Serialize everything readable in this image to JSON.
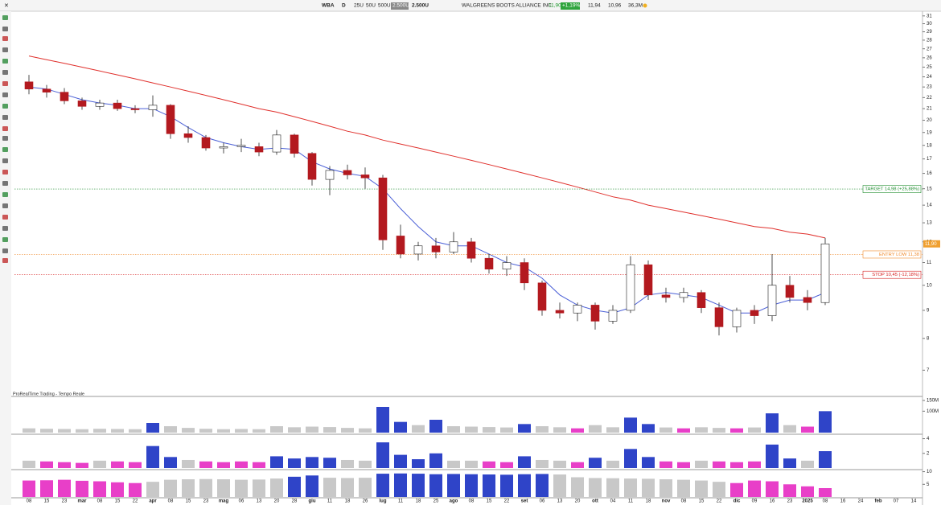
{
  "header": {
    "ticker": "WBA",
    "timeframe": "D",
    "buttons": [
      "25U",
      "50U",
      "500U",
      "2.500U"
    ],
    "size": "2.500U",
    "price": "11,90",
    "change": "+1,19%",
    "high": "11,94",
    "low": "10,96",
    "volume": "36,3M"
  },
  "chart_data": {
    "type": "candlestick",
    "title": "WALGREENS BOOTS ALLIANCE INC.",
    "source": "ProRealTime Trading - Tempo Reale",
    "categories": [
      "08",
      "15",
      "23",
      "mar",
      "08",
      "15",
      "22",
      "apr",
      "08",
      "15",
      "23",
      "mag",
      "06",
      "13",
      "20",
      "28",
      "giu",
      "11",
      "18",
      "26",
      "lug",
      "11",
      "18",
      "25",
      "ago",
      "08",
      "15",
      "22",
      "set",
      "06",
      "13",
      "20",
      "ott",
      "04",
      "11",
      "18",
      "nov",
      "08",
      "15",
      "22",
      "dic",
      "09",
      "16",
      "23",
      "2025",
      "08",
      "16",
      "24",
      "feb",
      "07",
      "14"
    ],
    "open": [
      23.5,
      22.8,
      22.5,
      21.7,
      21.2,
      21.5,
      21.0,
      20.9,
      21.3,
      18.9,
      18.6,
      17.8,
      17.9,
      17.9,
      17.5,
      18.8,
      17.4,
      15.6,
      16.2,
      15.9,
      15.7,
      12.3,
      11.4,
      11.8,
      11.5,
      12.0,
      11.2,
      10.7,
      11.0,
      10.1,
      9.0,
      8.9,
      9.2,
      8.6,
      9.0,
      10.9,
      9.6,
      9.5,
      9.7,
      9.1,
      8.4,
      9.0,
      8.8,
      10.0,
      9.5,
      9.3,
      null,
      null,
      null,
      null,
      null
    ],
    "high": [
      24.2,
      23.2,
      22.9,
      22.0,
      21.8,
      21.8,
      21.3,
      22.2,
      21.4,
      19.5,
      18.8,
      18.2,
      18.5,
      18.2,
      19.2,
      18.9,
      17.5,
      16.5,
      16.6,
      16.4,
      15.9,
      12.9,
      12.0,
      12.2,
      12.5,
      12.2,
      11.4,
      11.3,
      11.2,
      10.2,
      9.3,
      9.3,
      9.3,
      9.2,
      11.3,
      11.1,
      9.9,
      9.9,
      9.8,
      9.3,
      9.1,
      9.2,
      11.4,
      10.4,
      9.8,
      12.2,
      null,
      null,
      null,
      null,
      null
    ],
    "low": [
      22.3,
      22.0,
      21.4,
      20.9,
      20.9,
      20.8,
      20.6,
      20.3,
      18.5,
      18.2,
      17.6,
      17.4,
      17.5,
      17.2,
      17.3,
      17.1,
      15.2,
      14.6,
      15.6,
      15.0,
      11.6,
      11.2,
      11.1,
      11.2,
      11.4,
      11.0,
      10.5,
      10.4,
      9.8,
      8.8,
      8.7,
      8.6,
      8.3,
      8.5,
      8.9,
      9.4,
      9.3,
      9.3,
      8.9,
      8.1,
      8.2,
      8.5,
      8.6,
      9.3,
      9.0,
      9.2,
      null,
      null,
      null,
      null,
      null
    ],
    "close": [
      22.8,
      22.5,
      21.7,
      21.2,
      21.5,
      21.0,
      20.9,
      21.3,
      18.9,
      18.6,
      17.8,
      17.9,
      18.0,
      17.5,
      18.8,
      17.4,
      15.6,
      16.2,
      15.9,
      15.7,
      12.1,
      11.4,
      11.8,
      11.5,
      12.0,
      11.2,
      10.7,
      11.0,
      10.1,
      9.0,
      8.9,
      9.2,
      8.6,
      9.0,
      10.9,
      9.6,
      9.5,
      9.7,
      9.1,
      8.4,
      9.0,
      8.8,
      10.0,
      9.5,
      9.3,
      11.9,
      null,
      null,
      null,
      null,
      null
    ],
    "up_color": "#ffffff",
    "down_color": "#b3191f",
    "log_scale": true,
    "ylim": [
      6.55,
      31.4
    ],
    "yticks": [
      7,
      8,
      9,
      10,
      11,
      12,
      13,
      14,
      15,
      16,
      17,
      18,
      19,
      20,
      21,
      22,
      23,
      24,
      25,
      26,
      27,
      28,
      29,
      30,
      31
    ],
    "overlays": [
      {
        "color": "#e0302c",
        "values": [
          26.2,
          25.8,
          25.4,
          25.0,
          24.6,
          24.2,
          23.8,
          23.4,
          23.0,
          22.6,
          22.2,
          21.8,
          21.4,
          21.0,
          20.7,
          20.3,
          19.9,
          19.5,
          19.1,
          18.8,
          18.4,
          18.1,
          17.8,
          17.5,
          17.2,
          16.9,
          16.6,
          16.3,
          16.0,
          15.7,
          15.4,
          15.1,
          14.8,
          14.5,
          14.3,
          14.0,
          13.8,
          13.6,
          13.4,
          13.2,
          13.0,
          12.8,
          12.7,
          12.5,
          12.4,
          12.2,
          null,
          null,
          null,
          null,
          null
        ]
      },
      {
        "color": "#4a5fd6",
        "values": [
          23.0,
          22.8,
          22.3,
          21.8,
          21.5,
          21.3,
          21.0,
          21.0,
          20.3,
          19.4,
          18.6,
          18.2,
          17.9,
          17.7,
          17.8,
          17.7,
          16.8,
          16.3,
          16.0,
          15.8,
          15.0,
          13.8,
          12.8,
          12.0,
          11.8,
          11.8,
          11.4,
          11.0,
          10.8,
          10.3,
          9.6,
          9.2,
          9.0,
          8.9,
          9.1,
          9.6,
          9.7,
          9.6,
          9.5,
          9.2,
          8.9,
          8.9,
          9.2,
          9.4,
          9.4,
          9.7,
          null,
          null,
          null,
          null,
          null
        ]
      }
    ],
    "levels": [
      {
        "value": 14.98,
        "label": "TARGET 14,98 (+25,88%)",
        "color": "#1e8c2e"
      },
      {
        "value": 11.38,
        "label": "ENTRY LOW 11,38",
        "color": "#f08a2c"
      },
      {
        "value": 10.45,
        "label": "STOP 10,45 (-12,18%)",
        "color": "#d62020"
      }
    ],
    "last_price": {
      "value": 11.9,
      "label": "11,90",
      "color": "#f0a030"
    },
    "panels": [
      {
        "ylim": [
          0,
          165
        ],
        "yticks": [
          {
            "value": 100,
            "label": "100M"
          },
          {
            "value": 150,
            "label": "150M"
          }
        ],
        "values": [
          20,
          18,
          17,
          16,
          18,
          17,
          16,
          45,
          30,
          22,
          18,
          16,
          17,
          16,
          30,
          25,
          28,
          26,
          22,
          20,
          120,
          50,
          35,
          60,
          30,
          28,
          26,
          24,
          40,
          30,
          25,
          20,
          35,
          25,
          70,
          40,
          24,
          20,
          25,
          22,
          20,
          24,
          90,
          35,
          28,
          100,
          null,
          null,
          null,
          null,
          null
        ],
        "colors": [
          "#c8c8c8",
          "#c8c8c8",
          "#c8c8c8",
          "#c8c8c8",
          "#c8c8c8",
          "#c8c8c8",
          "#c8c8c8",
          "#2f44c8",
          "#c8c8c8",
          "#c8c8c8",
          "#c8c8c8",
          "#c8c8c8",
          "#c8c8c8",
          "#c8c8c8",
          "#c8c8c8",
          "#c8c8c8",
          "#c8c8c8",
          "#c8c8c8",
          "#c8c8c8",
          "#c8c8c8",
          "#2f44c8",
          "#2f44c8",
          "#c8c8c8",
          "#2f44c8",
          "#c8c8c8",
          "#c8c8c8",
          "#c8c8c8",
          "#c8c8c8",
          "#2f44c8",
          "#c8c8c8",
          "#c8c8c8",
          "#e83fc8",
          "#c8c8c8",
          "#c8c8c8",
          "#2f44c8",
          "#2f44c8",
          "#c8c8c8",
          "#e83fc8",
          "#c8c8c8",
          "#c8c8c8",
          "#e83fc8",
          "#c8c8c8",
          "#2f44c8",
          "#c8c8c8",
          "#e83fc8",
          "#2f44c8",
          null,
          null,
          null,
          null,
          null
        ]
      },
      {
        "ylim": [
          0,
          4.5
        ],
        "yticks": [
          2,
          4
        ],
        "values": [
          1.0,
          0.9,
          0.8,
          0.7,
          1.0,
          0.9,
          0.8,
          3.0,
          1.5,
          1.1,
          0.9,
          0.8,
          0.9,
          0.8,
          1.6,
          1.3,
          1.5,
          1.4,
          1.1,
          1.0,
          3.5,
          1.8,
          1.2,
          2.0,
          1.0,
          1.0,
          0.9,
          0.8,
          1.6,
          1.1,
          1.0,
          0.8,
          1.4,
          1.0,
          2.6,
          1.5,
          0.9,
          0.8,
          1.0,
          0.9,
          0.8,
          0.9,
          3.2,
          1.3,
          1.0,
          2.3,
          null,
          null,
          null,
          null,
          null
        ],
        "colors": [
          "#c8c8c8",
          "#e83fc8",
          "#e83fc8",
          "#e83fc8",
          "#c8c8c8",
          "#e83fc8",
          "#e83fc8",
          "#2f44c8",
          "#2f44c8",
          "#c8c8c8",
          "#e83fc8",
          "#e83fc8",
          "#e83fc8",
          "#e83fc8",
          "#2f44c8",
          "#2f44c8",
          "#2f44c8",
          "#2f44c8",
          "#c8c8c8",
          "#c8c8c8",
          "#2f44c8",
          "#2f44c8",
          "#2f44c8",
          "#2f44c8",
          "#c8c8c8",
          "#c8c8c8",
          "#e83fc8",
          "#e83fc8",
          "#2f44c8",
          "#c8c8c8",
          "#c8c8c8",
          "#e83fc8",
          "#2f44c8",
          "#c8c8c8",
          "#2f44c8",
          "#2f44c8",
          "#e83fc8",
          "#e83fc8",
          "#c8c8c8",
          "#e83fc8",
          "#e83fc8",
          "#e83fc8",
          "#2f44c8",
          "#2f44c8",
          "#c8c8c8",
          "#2f44c8",
          null,
          null,
          null,
          null,
          null
        ]
      },
      {
        "ylim": [
          0,
          10.5
        ],
        "yticks": [
          5,
          10
        ],
        "values": [
          6.5,
          6.6,
          6.8,
          6.4,
          6.2,
          5.8,
          5.5,
          6.0,
          6.8,
          7.0,
          7.1,
          7.0,
          6.8,
          6.9,
          7.3,
          8.0,
          8.5,
          7.6,
          7.5,
          7.6,
          9.2,
          9.3,
          9.2,
          9.0,
          9.1,
          9.0,
          8.9,
          8.8,
          9.0,
          9.1,
          8.9,
          7.8,
          7.5,
          7.4,
          7.3,
          7.2,
          7.0,
          6.8,
          6.5,
          6.0,
          5.5,
          6.5,
          6.2,
          5.0,
          4.2,
          3.5,
          null,
          null,
          null,
          null,
          null
        ],
        "colors": [
          "#e83fc8",
          "#e83fc8",
          "#e83fc8",
          "#e83fc8",
          "#e83fc8",
          "#e83fc8",
          "#e83fc8",
          "#c8c8c8",
          "#c8c8c8",
          "#c8c8c8",
          "#c8c8c8",
          "#c8c8c8",
          "#c8c8c8",
          "#c8c8c8",
          "#c8c8c8",
          "#2f44c8",
          "#2f44c8",
          "#c8c8c8",
          "#c8c8c8",
          "#c8c8c8",
          "#2f44c8",
          "#2f44c8",
          "#2f44c8",
          "#2f44c8",
          "#2f44c8",
          "#2f44c8",
          "#2f44c8",
          "#2f44c8",
          "#2f44c8",
          "#2f44c8",
          "#c8c8c8",
          "#c8c8c8",
          "#c8c8c8",
          "#c8c8c8",
          "#c8c8c8",
          "#c8c8c8",
          "#c8c8c8",
          "#c8c8c8",
          "#c8c8c8",
          "#c8c8c8",
          "#e83fc8",
          "#e83fc8",
          "#e83fc8",
          "#e83fc8",
          "#e83fc8",
          "#e83fc8",
          null,
          null,
          null,
          null,
          null
        ]
      }
    ]
  }
}
